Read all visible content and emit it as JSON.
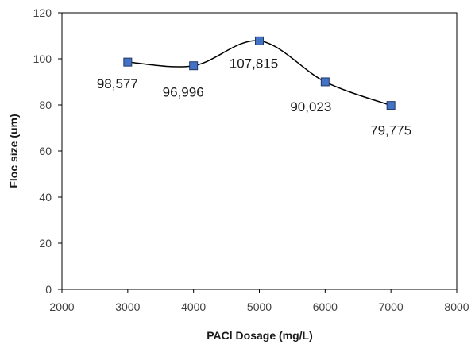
{
  "chart_data": {
    "type": "scatter",
    "title": "",
    "xlabel": "PACl Dosage (mg/L)",
    "ylabel": "Floc size (um)",
    "xlim": [
      2000,
      8000
    ],
    "ylim": [
      0,
      120
    ],
    "x_ticks": [
      2000,
      3000,
      4000,
      5000,
      6000,
      7000,
      8000
    ],
    "y_ticks": [
      0,
      20,
      40,
      60,
      80,
      100,
      120
    ],
    "grid": false,
    "legend": "none",
    "series": [
      {
        "x": [
          3000,
          4000,
          5000,
          6000,
          7000
        ],
        "y": [
          98.577,
          96.996,
          107.815,
          90.023,
          79.775
        ],
        "labels": [
          "98,577",
          "96,996",
          "107,815",
          "90,023",
          "79,775"
        ],
        "marker": "square",
        "line": "smooth",
        "color": "#4472c4",
        "line_color": "#000000"
      }
    ]
  }
}
